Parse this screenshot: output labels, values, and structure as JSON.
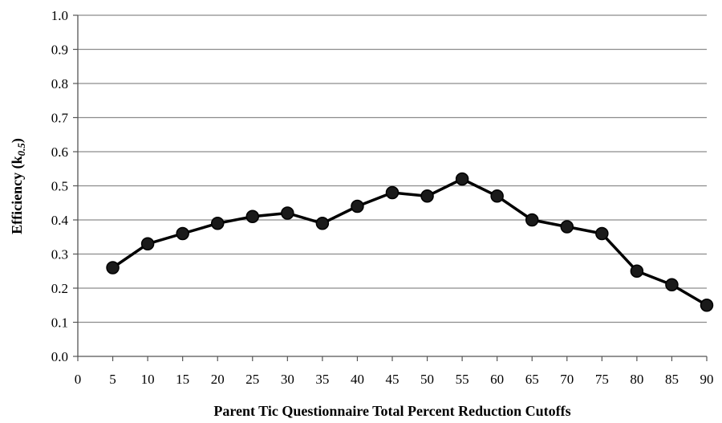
{
  "chart_data": {
    "type": "line",
    "title": "",
    "xlabel": "Parent Tic Questionnaire Total Percent Reduction Cutoffs",
    "ylabel_main": "Efficiency (k",
    "ylabel_sub": "0.5",
    "ylabel_close": ")",
    "xlim": [
      0,
      90
    ],
    "ylim": [
      0.0,
      1.0
    ],
    "x_ticks": [
      0,
      5,
      10,
      15,
      20,
      25,
      30,
      35,
      40,
      45,
      50,
      55,
      60,
      65,
      70,
      75,
      80,
      85,
      90
    ],
    "y_ticks": [
      "0.0",
      "0.1",
      "0.2",
      "0.3",
      "0.4",
      "0.5",
      "0.6",
      "0.7",
      "0.8",
      "0.9",
      "1.0"
    ],
    "grid": "horizontal",
    "legend": "none",
    "series": [
      {
        "x": [
          5,
          10,
          15,
          20,
          25,
          30,
          35,
          40,
          45,
          50,
          55,
          60,
          65,
          70,
          75,
          80,
          85,
          90
        ],
        "y": [
          0.26,
          0.33,
          0.36,
          0.39,
          0.41,
          0.42,
          0.39,
          0.44,
          0.48,
          0.47,
          0.52,
          0.47,
          0.4,
          0.38,
          0.36,
          0.25,
          0.21,
          0.15
        ]
      }
    ],
    "colors": {
      "line": "#000000",
      "marker": "#1a1a1a",
      "grid": "#8c8c8c"
    }
  }
}
